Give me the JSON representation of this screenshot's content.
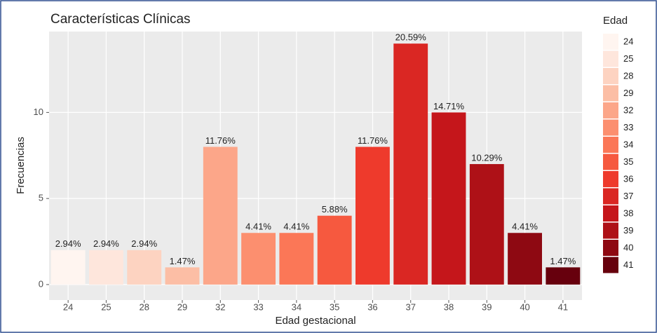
{
  "chart_data": {
    "type": "bar",
    "title": "Características Clínicas",
    "xlabel": "Edad gestacional",
    "ylabel": "Frecuencias",
    "legend_title": "Edad",
    "legend": "right",
    "categories": [
      "24",
      "25",
      "28",
      "29",
      "32",
      "33",
      "34",
      "35",
      "36",
      "37",
      "38",
      "39",
      "40",
      "41"
    ],
    "values": [
      2,
      2,
      2,
      1,
      8,
      3,
      3,
      4,
      8,
      14,
      10,
      7,
      3,
      1
    ],
    "value_labels": [
      "2.94%",
      "2.94%",
      "2.94%",
      "1.47%",
      "11.76%",
      "4.41%",
      "4.41%",
      "5.88%",
      "11.76%",
      "20.59%",
      "14.71%",
      "10.29%",
      "4.41%",
      "1.47%"
    ],
    "colors": [
      "#fff5f0",
      "#fee6dc",
      "#fdd3c1",
      "#fcbea5",
      "#fca689",
      "#fc8f6f",
      "#fb7757",
      "#f6593f",
      "#ee3a2c",
      "#da2723",
      "#c5161b",
      "#ae1117",
      "#8e0912",
      "#67000d"
    ],
    "ylim": [
      -0.9,
      14.7
    ],
    "yticks": [
      0,
      5,
      10
    ],
    "grid": true
  }
}
